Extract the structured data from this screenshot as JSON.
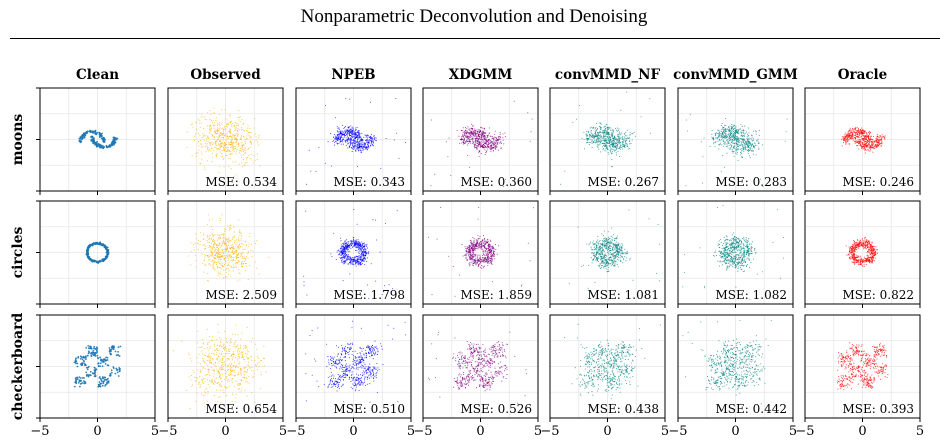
{
  "page": {
    "title": "Nonparametric Deconvolution and Denoising"
  },
  "chart_data": {
    "type": "scatter",
    "title": "Nonparametric Deconvolution and Denoising",
    "columns": [
      "Clean",
      "Observed",
      "NPEB",
      "XDGMM",
      "convMMD_NF",
      "convMMD_GMM",
      "Oracle"
    ],
    "rows": [
      "moons",
      "circles",
      "checkerboard"
    ],
    "xlim": [
      -5,
      5
    ],
    "ylim": [
      -5,
      5
    ],
    "xticks": [
      -5,
      0,
      5
    ],
    "grid": true,
    "colors": {
      "Clean": "#1f77b4",
      "Observed": "#ffb000",
      "NPEB": "#0000ff",
      "XDGMM": "#800080",
      "convMMD_NF": "#008080",
      "convMMD_GMM": "#008080",
      "Oracle": "#ff0000"
    },
    "mse": {
      "moons": {
        "Observed": "MSE: 0.534",
        "NPEB": "MSE: 0.343",
        "XDGMM": "MSE: 0.360",
        "convMMD_NF": "MSE: 0.267",
        "convMMD_GMM": "MSE: 0.283",
        "Oracle": "MSE: 0.246"
      },
      "circles": {
        "Observed": "MSE: 2.509",
        "NPEB": "MSE: 1.798",
        "XDGMM": "MSE: 1.859",
        "convMMD_NF": "MSE: 1.081",
        "convMMD_GMM": "MSE: 1.082",
        "Oracle": "MSE: 0.822"
      },
      "checkerboard": {
        "Observed": "MSE: 0.654",
        "NPEB": "MSE: 0.510",
        "XDGMM": "MSE: 0.526",
        "convMMD_NF": "MSE: 0.438",
        "convMMD_GMM": "MSE: 0.442",
        "Oracle": "MSE: 0.393"
      }
    },
    "x_tick_labels": [
      "−5",
      "0",
      "5"
    ]
  }
}
